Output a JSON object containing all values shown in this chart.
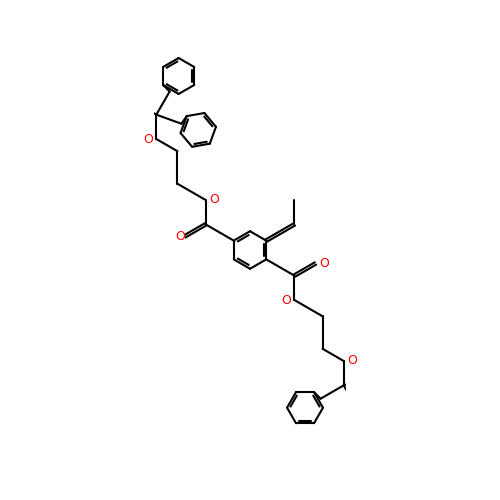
{
  "bg_color": "#ffffff",
  "bond_color": "#000000",
  "bond_width": 1.5,
  "dbo": 0.035,
  "font_size": 9,
  "O_color": "#ff0000",
  "figsize": [
    5.0,
    5.0
  ],
  "dpi": 100,
  "xlim": [
    -2.5,
    2.5
  ],
  "ylim": [
    -6.5,
    6.5
  ]
}
